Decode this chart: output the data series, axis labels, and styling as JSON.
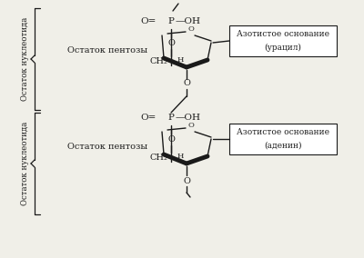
{
  "bg_color": "#f0efe8",
  "line_color": "#1a1a1a",
  "box_color": "#ffffff",
  "font_size": 7.5,
  "small_font": 6.5,
  "label1_line1": "Азотистое основание",
  "label1_line2": "(урацил)",
  "label2_line1": "Азотистое основание",
  "label2_line2": "(аденин)",
  "label3": "Остаток пентозы",
  "label4": "Остаток пентозы",
  "side_label": "Остаток нуклеотида",
  "side_label2": "Остаток нуклеотида"
}
